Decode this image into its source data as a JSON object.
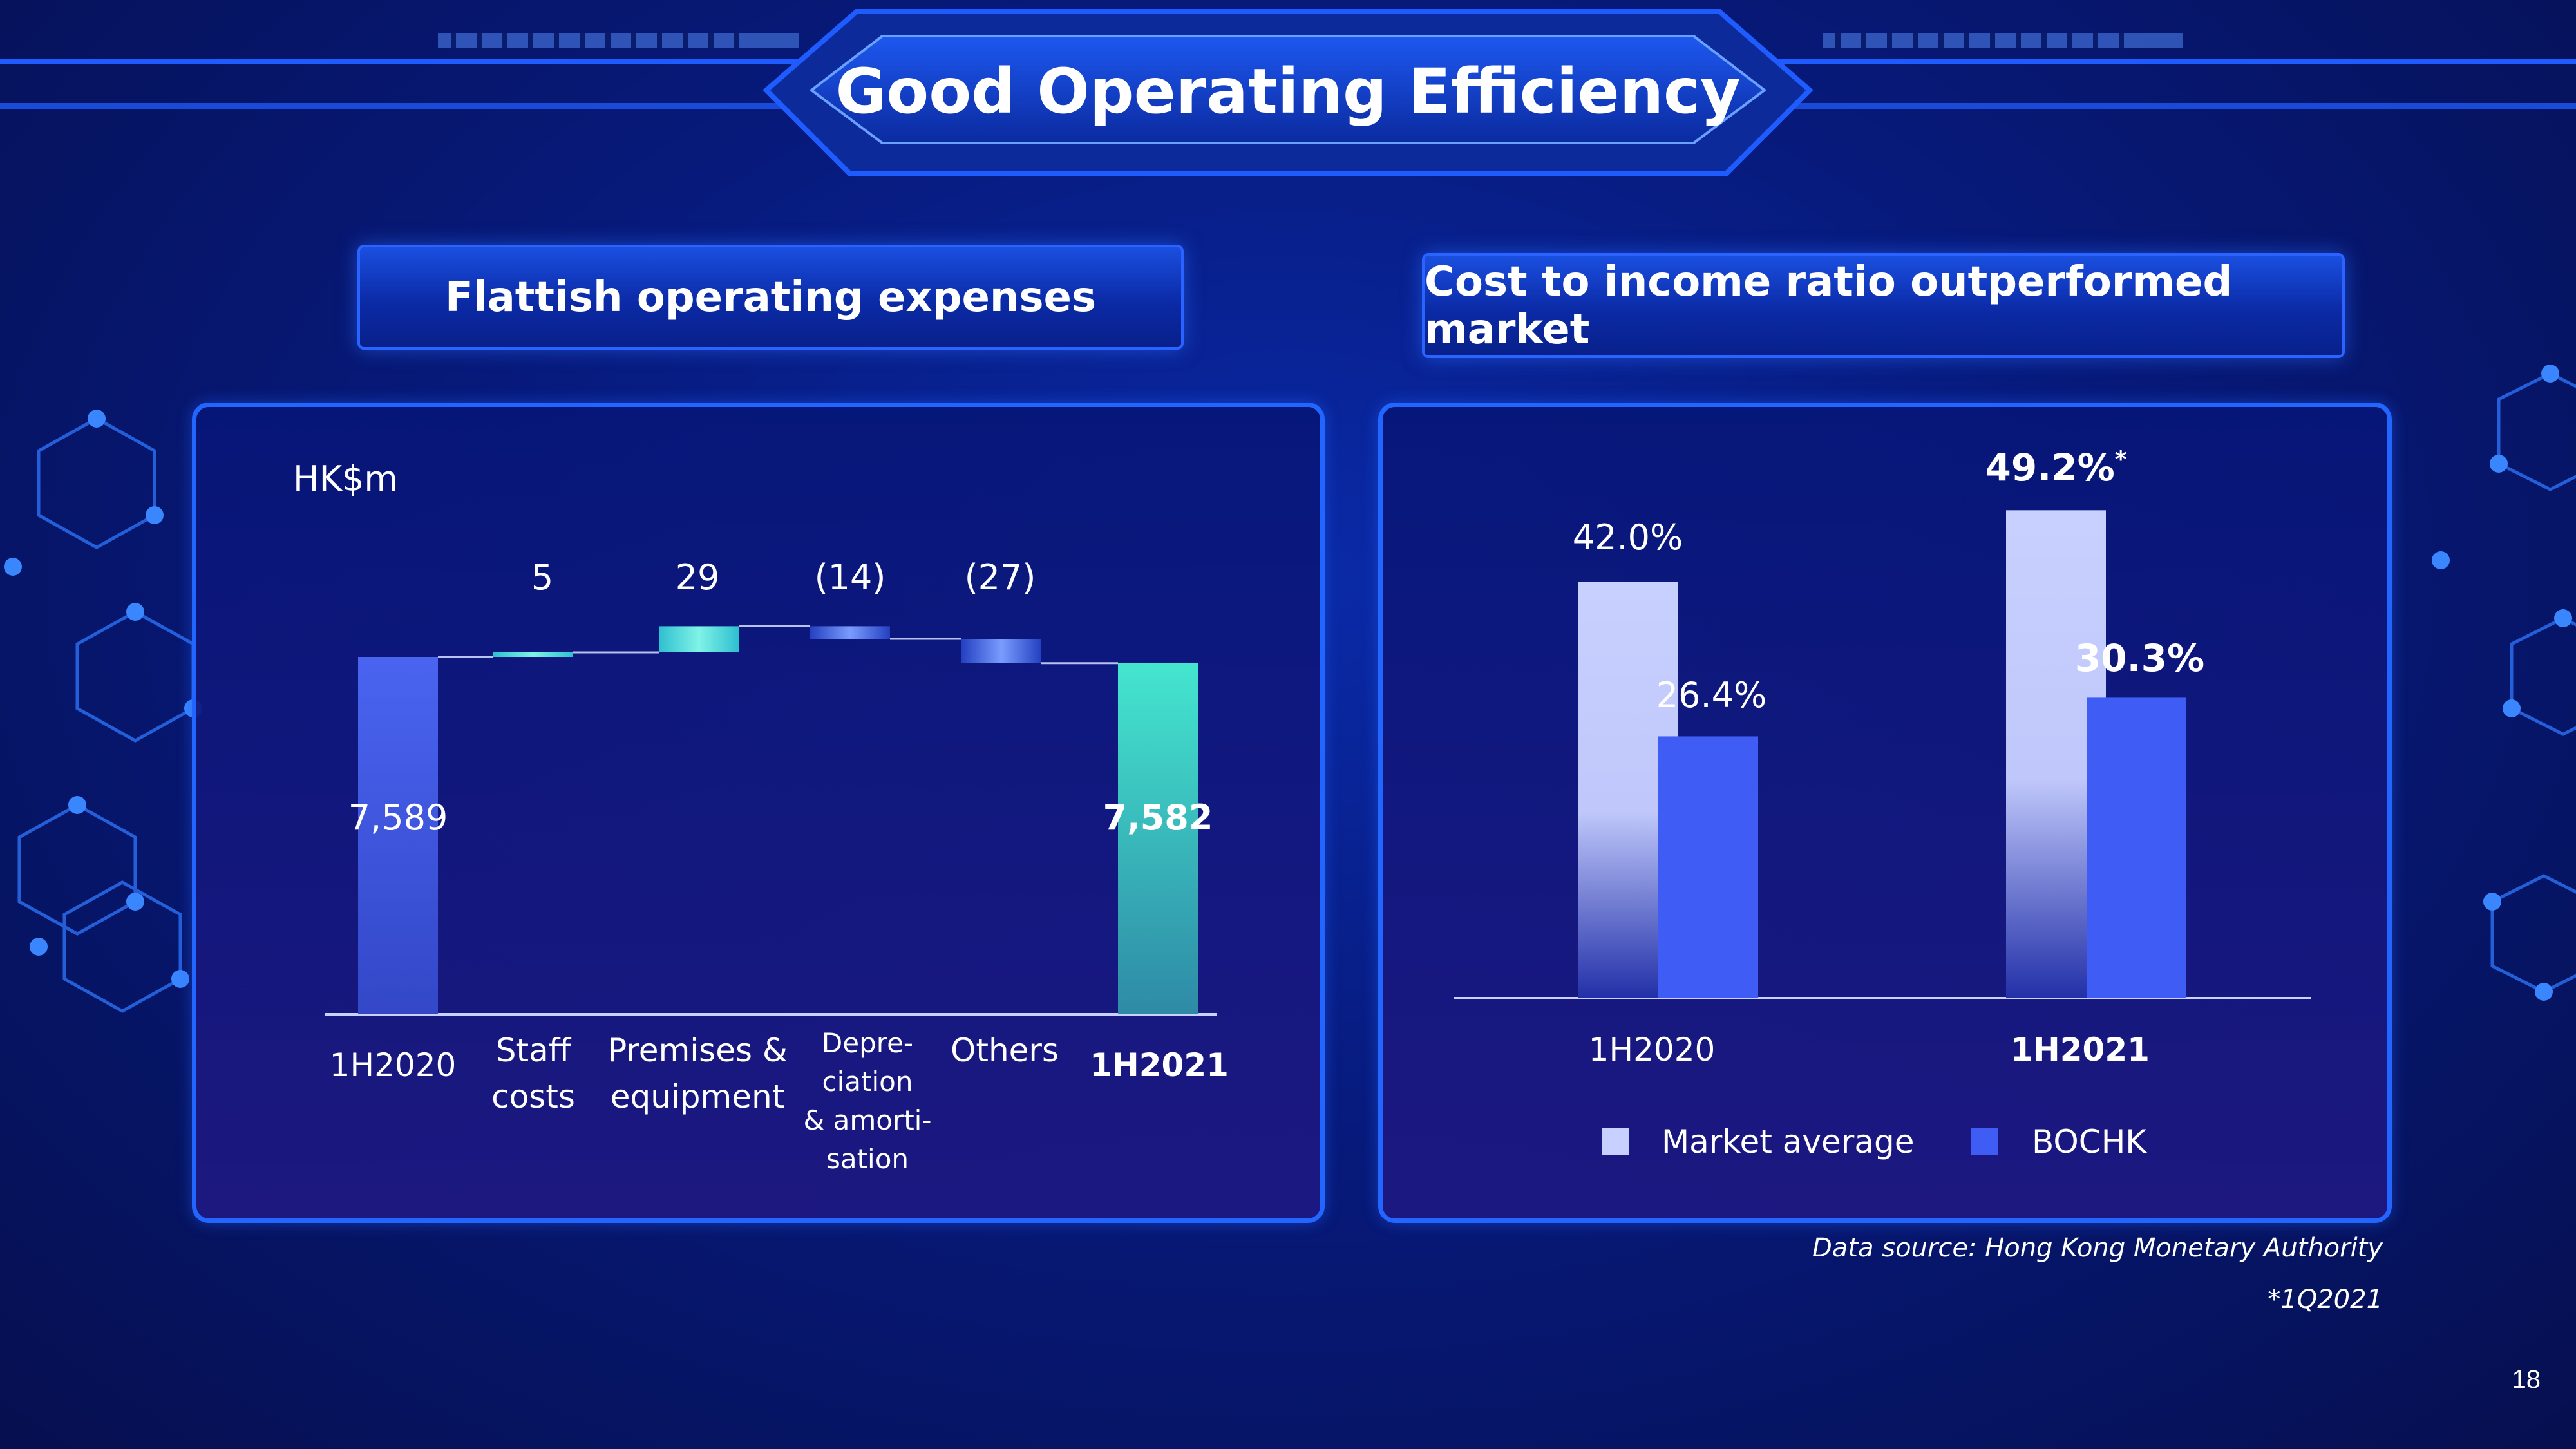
{
  "slide": {
    "title": "Good Operating Efficiency",
    "page_number": "18",
    "footnote_source": "Data source: Hong Kong Monetary Authority",
    "footnote_asterisk": "*1Q2021"
  },
  "left_panel": {
    "heading": "Flattish operating expenses",
    "unit": "HK$m"
  },
  "right_panel": {
    "heading": "Cost to income ratio outperformed market"
  },
  "colors": {
    "start_bar": "#4059e6",
    "end_bar": "#39d9c4",
    "increase": "#53e6d3",
    "decrease": "#5a7ff0",
    "market_average": "#c8d0ff",
    "bochk": "#3f5cf5"
  },
  "chart_data": [
    {
      "type": "bar",
      "subtype": "waterfall",
      "unit": "HK$m",
      "categories": [
        "1H2020",
        "Staff costs",
        "Premises & equipment",
        "Depre-ciation & amorti-sation",
        "Others",
        "1H2021"
      ],
      "category_lines": [
        [
          "1H2020"
        ],
        [
          "Staff",
          "costs"
        ],
        [
          "Premises &",
          "equipment"
        ],
        [
          "Depre-",
          "ciation",
          "& amorti-",
          "sation"
        ],
        [
          "Others"
        ],
        [
          "1H2021"
        ]
      ],
      "values": [
        7589,
        5,
        29,
        -14,
        -27,
        7582
      ],
      "labels": [
        "7,589",
        "5",
        "29",
        "(14)",
        "(27)",
        "7,582"
      ],
      "kinds": [
        "total",
        "delta",
        "delta",
        "delta",
        "delta",
        "total"
      ]
    },
    {
      "type": "bar",
      "categories": [
        "1H2020",
        "1H2021"
      ],
      "series": [
        {
          "name": "Market average",
          "values": [
            42.0,
            49.2
          ],
          "labels": [
            "42.0%",
            "49.2%"
          ]
        },
        {
          "name": "BOCHK",
          "values": [
            26.4,
            30.3
          ],
          "labels": [
            "26.4%",
            "30.3%"
          ]
        }
      ],
      "asterisk_on": "49.2%",
      "asterisk": "*",
      "legend_position": "bottom"
    }
  ]
}
